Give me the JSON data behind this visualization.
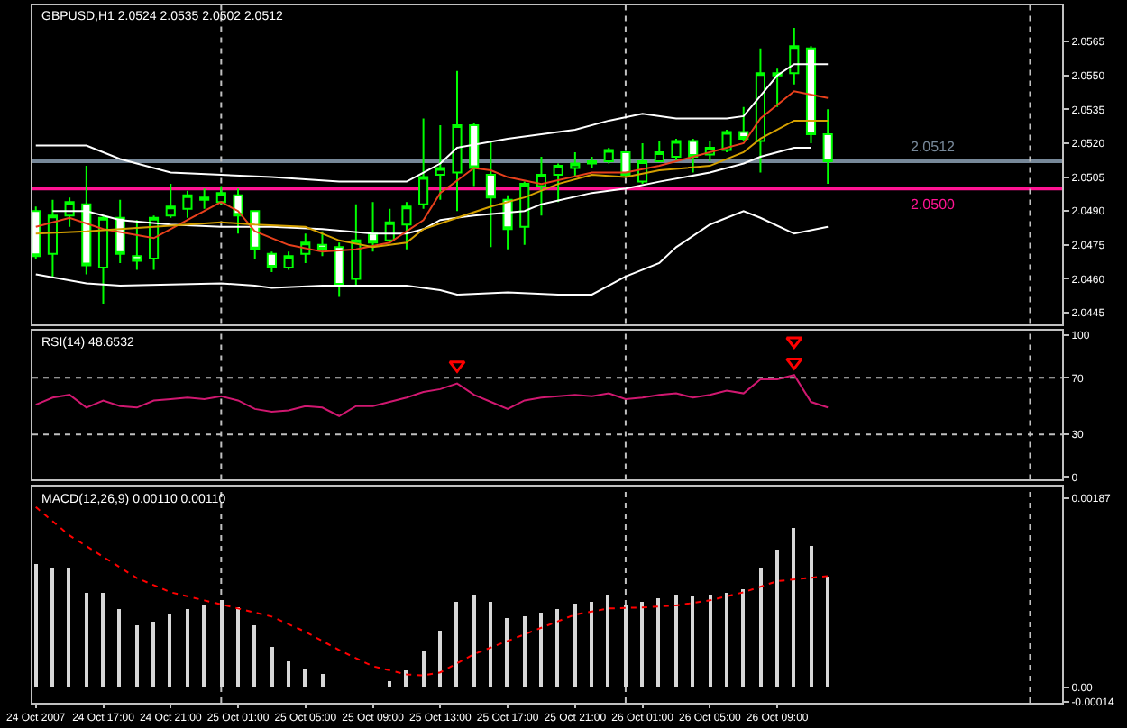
{
  "chart_data": [
    {
      "type": "candlestick",
      "title": "GBPUSD,H1 2.0524 2.0535 2.0502 2.0512",
      "x": [
        "2007-10-24T13:00",
        "2007-10-24T14:00",
        "2007-10-24T15:00",
        "2007-10-24T16:00",
        "2007-10-24T17:00",
        "2007-10-24T18:00",
        "2007-10-24T19:00",
        "2007-10-24T20:00",
        "2007-10-24T21:00",
        "2007-10-24T22:00",
        "2007-10-24T23:00",
        "2007-10-25T00:00",
        "2007-10-25T01:00",
        "2007-10-25T02:00",
        "2007-10-25T03:00",
        "2007-10-25T04:00",
        "2007-10-25T05:00",
        "2007-10-25T06:00",
        "2007-10-25T07:00",
        "2007-10-25T08:00",
        "2007-10-25T09:00",
        "2007-10-25T10:00",
        "2007-10-25T11:00",
        "2007-10-25T12:00",
        "2007-10-25T13:00",
        "2007-10-25T14:00",
        "2007-10-25T15:00",
        "2007-10-25T16:00",
        "2007-10-25T17:00",
        "2007-10-25T18:00",
        "2007-10-25T19:00",
        "2007-10-25T20:00",
        "2007-10-25T21:00",
        "2007-10-25T22:00",
        "2007-10-25T23:00",
        "2007-10-26T00:00",
        "2007-10-26T01:00",
        "2007-10-26T02:00",
        "2007-10-26T03:00",
        "2007-10-26T04:00",
        "2007-10-26T05:00",
        "2007-10-26T06:00",
        "2007-10-26T07:00",
        "2007-10-26T08:00",
        "2007-10-26T09:00",
        "2007-10-26T10:00",
        "2007-10-26T11:00",
        "2007-10-26T12:00"
      ],
      "series": [
        {
          "color": "#00ff00",
          "ohlc": [
            [
              2.049,
              2.0492,
              2.0469,
              2.047
            ],
            [
              2.0471,
              2.0495,
              2.0461,
              2.0488
            ],
            [
              2.0488,
              2.0496,
              2.0483,
              2.0494
            ],
            [
              2.0493,
              2.051,
              2.0462,
              2.0466
            ],
            [
              2.0465,
              2.0488,
              2.0449,
              2.0487
            ],
            [
              2.0487,
              2.0495,
              2.0467,
              2.0471
            ],
            [
              2.047,
              2.0486,
              2.0464,
              2.0468
            ],
            [
              2.0469,
              2.0488,
              2.0464,
              2.0487
            ],
            [
              2.0488,
              2.0502,
              2.0487,
              2.0492
            ],
            [
              2.0491,
              2.0499,
              2.0487,
              2.0497
            ],
            [
              2.0496,
              2.05,
              2.0491,
              2.0495
            ],
            [
              2.0494,
              2.0501,
              2.0493,
              2.0498
            ],
            [
              2.0497,
              2.05,
              2.048,
              2.0488
            ],
            [
              2.049,
              2.049,
              2.0469,
              2.0473
            ],
            [
              2.0471,
              2.0472,
              2.0463,
              2.0465
            ],
            [
              2.0465,
              2.0472,
              2.0464,
              2.047
            ],
            [
              2.0471,
              2.048,
              2.0467,
              2.0476
            ],
            [
              2.0475,
              2.0481,
              2.047,
              2.0473
            ],
            [
              2.0474,
              2.0476,
              2.0452,
              2.0457
            ],
            [
              2.046,
              2.0493,
              2.0457,
              2.0477
            ],
            [
              2.048,
              2.0494,
              2.0472,
              2.0476
            ],
            [
              2.0477,
              2.0491,
              2.0476,
              2.0485
            ],
            [
              2.0484,
              2.0494,
              2.0473,
              2.0492
            ],
            [
              2.0493,
              2.0531,
              2.0491,
              2.0505
            ],
            [
              2.0506,
              2.0528,
              2.0495,
              2.0509
            ],
            [
              2.0507,
              2.0552,
              2.049,
              2.0528
            ],
            [
              2.0528,
              2.0529,
              2.0501,
              2.0509
            ],
            [
              2.0506,
              2.0521,
              2.0474,
              2.0496
            ],
            [
              2.0495,
              2.0497,
              2.0473,
              2.0482
            ],
            [
              2.0483,
              2.0503,
              2.0475,
              2.0502
            ],
            [
              2.0501,
              2.0514,
              2.0488,
              2.0506
            ],
            [
              2.0506,
              2.0511,
              2.0494,
              2.051
            ],
            [
              2.0509,
              2.0516,
              2.0505,
              2.0511
            ],
            [
              2.0512,
              2.0514,
              2.0509,
              2.0511
            ],
            [
              2.0512,
              2.0518,
              2.0511,
              2.0517
            ],
            [
              2.0516,
              2.0516,
              2.0505,
              2.0506
            ],
            [
              2.0503,
              2.052,
              2.0502,
              2.0512
            ],
            [
              2.0512,
              2.0521,
              2.0512,
              2.0516
            ],
            [
              2.0514,
              2.0522,
              2.0512,
              2.0521
            ],
            [
              2.0521,
              2.0522,
              2.0507,
              2.0514
            ],
            [
              2.0515,
              2.0521,
              2.0512,
              2.0518
            ],
            [
              2.0517,
              2.0526,
              2.0516,
              2.0525
            ],
            [
              2.0525,
              2.0536,
              2.0521,
              2.0522
            ],
            [
              2.0521,
              2.0562,
              2.0507,
              2.0551
            ],
            [
              2.055,
              2.0553,
              2.0536,
              2.0551
            ],
            [
              2.0551,
              2.0571,
              2.0546,
              2.0563
            ],
            [
              2.0562,
              2.0563,
              2.052,
              2.0524
            ],
            [
              2.0524,
              2.0535,
              2.0502,
              2.0512
            ]
          ]
        },
        {
          "type": "line",
          "color": "#ffffff",
          "x": [
            "2007-10-24T13:00",
            "2007-10-24T16:00",
            "2007-10-24T18:00",
            "2007-10-24T21:00",
            "2007-10-25T00:00",
            "2007-10-25T03:00",
            "2007-10-25T07:00",
            "2007-10-25T11:00",
            "2007-10-25T12:00",
            "2007-10-25T13:00",
            "2007-10-25T14:00",
            "2007-10-25T17:00",
            "2007-10-25T19:00",
            "2007-10-25T21:00",
            "2007-10-25T23:00",
            "2007-10-26T01:00",
            "2007-10-26T03:00",
            "2007-10-26T06:00",
            "2007-10-26T07:00",
            "2007-10-26T08:00",
            "2007-10-26T09:00",
            "2007-10-26T10:00",
            "2007-10-26T12:00"
          ],
          "values": [
            2.0519,
            2.0519,
            2.0513,
            2.0507,
            2.0506,
            2.0505,
            2.0503,
            2.0503,
            2.0507,
            2.0511,
            2.0518,
            2.0522,
            2.0524,
            2.0526,
            2.053,
            2.0533,
            2.0531,
            2.0531,
            2.0532,
            2.0541,
            2.055,
            2.0555,
            2.0555
          ]
        },
        {
          "type": "line",
          "color": "#ffffff",
          "x": [
            "2007-10-24T14:00",
            "2007-10-24T16:00",
            "2007-10-24T18:00",
            "2007-10-24T21:00",
            "2007-10-25T00:00",
            "2007-10-25T03:00",
            "2007-10-25T06:00",
            "2007-10-25T09:00",
            "2007-10-25T11:00",
            "2007-10-25T12:00",
            "2007-10-25T13:00",
            "2007-10-25T15:00",
            "2007-10-25T18:00",
            "2007-10-25T19:00",
            "2007-10-25T22:00",
            "2007-10-26T00:00",
            "2007-10-26T02:00",
            "2007-10-26T05:00",
            "2007-10-26T07:00",
            "2007-10-26T08:00",
            "2007-10-26T10:00",
            "2007-10-26T11:00"
          ],
          "values": [
            2.049,
            2.049,
            2.0486,
            2.0484,
            2.0483,
            2.0483,
            2.0482,
            2.048,
            2.048,
            2.0482,
            2.0486,
            2.0488,
            2.049,
            2.0493,
            2.0498,
            2.05,
            2.0503,
            2.0507,
            2.0511,
            2.0514,
            2.0518,
            2.0518
          ]
        },
        {
          "type": "line",
          "color": "#ffffff",
          "x": [
            "2007-10-24T13:00",
            "2007-10-24T16:00",
            "2007-10-24T18:00",
            "2007-10-25T00:00",
            "2007-10-25T02:00",
            "2007-10-25T03:00",
            "2007-10-25T06:00",
            "2007-10-25T11:00",
            "2007-10-25T13:00",
            "2007-10-25T14:00",
            "2007-10-25T17:00",
            "2007-10-25T20:00",
            "2007-10-25T22:00",
            "2007-10-26T00:00",
            "2007-10-26T02:00",
            "2007-10-26T03:00",
            "2007-10-26T05:00",
            "2007-10-26T07:00",
            "2007-10-26T08:00",
            "2007-10-26T10:00",
            "2007-10-26T12:00"
          ],
          "values": [
            2.0462,
            2.0458,
            2.0457,
            2.0458,
            2.0457,
            2.0456,
            2.0457,
            2.0457,
            2.0455,
            2.0453,
            2.0454,
            2.0453,
            2.0453,
            2.0461,
            2.0467,
            2.0474,
            2.0484,
            2.049,
            2.0487,
            2.048,
            2.0483
          ]
        },
        {
          "type": "line",
          "color": "#e8401c",
          "x": [
            "2007-10-24T13:00",
            "2007-10-24T15:00",
            "2007-10-24T17:00",
            "2007-10-24T20:00",
            "2007-10-24T22:00",
            "2007-10-25T00:00",
            "2007-10-25T01:00",
            "2007-10-25T02:00",
            "2007-10-25T04:00",
            "2007-10-25T06:00",
            "2007-10-25T08:00",
            "2007-10-25T10:00",
            "2007-10-25T12:00",
            "2007-10-25T13:00",
            "2007-10-25T15:00",
            "2007-10-25T16:00",
            "2007-10-25T17:00",
            "2007-10-25T19:00",
            "2007-10-25T22:00",
            "2007-10-26T00:00",
            "2007-10-26T02:00",
            "2007-10-26T04:00",
            "2007-10-26T07:00",
            "2007-10-26T08:00",
            "2007-10-26T10:00",
            "2007-10-26T12:00"
          ],
          "values": [
            2.0483,
            2.0487,
            2.0482,
            2.0478,
            2.0486,
            2.0494,
            2.049,
            2.0481,
            2.0475,
            2.0472,
            2.0473,
            2.0476,
            2.0486,
            2.0498,
            2.0509,
            2.0508,
            2.0505,
            2.0502,
            2.0507,
            2.0507,
            2.051,
            2.0514,
            2.052,
            2.0531,
            2.0543,
            2.054
          ]
        },
        {
          "type": "line",
          "color": "#d4a000",
          "x": [
            "2007-10-24T13:00",
            "2007-10-24T16:00",
            "2007-10-24T20:00",
            "2007-10-24T22:00",
            "2007-10-25T00:00",
            "2007-10-25T02:00",
            "2007-10-25T05:00",
            "2007-10-25T07:00",
            "2007-10-25T09:00",
            "2007-10-25T11:00",
            "2007-10-25T12:00",
            "2007-10-25T14:00",
            "2007-10-25T16:00",
            "2007-10-25T18:00",
            "2007-10-25T20:00",
            "2007-10-25T22:00",
            "2007-10-26T00:00",
            "2007-10-26T02:00",
            "2007-10-26T05:00",
            "2007-10-26T07:00",
            "2007-10-26T08:00",
            "2007-10-26T10:00",
            "2007-10-26T12:00"
          ],
          "values": [
            2.048,
            2.0481,
            2.0483,
            2.0484,
            2.0485,
            2.0484,
            2.0483,
            2.0477,
            2.0474,
            2.0476,
            2.0482,
            2.0487,
            2.0492,
            2.0496,
            2.0502,
            2.0506,
            2.0505,
            2.0508,
            2.051,
            2.0516,
            2.0522,
            2.053,
            2.053
          ]
        }
      ],
      "xlim": [
        "2007-10-24T12:48",
        "2007-10-27T01:54"
      ],
      "ylim": [
        2.044,
        2.0581
      ],
      "yticks": [
        2.0445,
        {
          "value": 2.046,
          "label": "2.0460"
        },
        2.0475,
        {
          "value": 2.049,
          "label": "2.0490"
        },
        2.0505,
        {
          "value": 2.052,
          "label": "2.0520"
        },
        2.0535,
        {
          "value": 2.055,
          "label": "2.0550"
        },
        2.0565
      ],
      "tick_labels": "y",
      "ref_lines": [
        {
          "axis": "y",
          "value": 2.0512,
          "label": "2.0512",
          "color": "#778899"
        },
        {
          "axis": "y",
          "value": 2.05,
          "label": "2.0500",
          "color": "#ff1493"
        },
        {
          "axis": "x",
          "value": "2007-10-25T00:00",
          "color": "#c0c0c0",
          "line_style": "dotted"
        },
        {
          "axis": "x",
          "value": "2007-10-26T00:00",
          "color": "#c0c0c0",
          "line_style": "dotted"
        },
        {
          "axis": "x",
          "value": "2007-10-27T00:00",
          "color": "#c0c0c0",
          "line_style": "dotted"
        }
      ]
    },
    {
      "type": "line",
      "title": "RSI(14) 48.6532",
      "x": [
        "2007-10-24T13:00",
        "2007-10-24T14:00",
        "2007-10-24T15:00",
        "2007-10-24T16:00",
        "2007-10-24T17:00",
        "2007-10-24T18:00",
        "2007-10-24T19:00",
        "2007-10-24T20:00",
        "2007-10-24T21:00",
        "2007-10-24T22:00",
        "2007-10-24T23:00",
        "2007-10-25T00:00",
        "2007-10-25T01:00",
        "2007-10-25T02:00",
        "2007-10-25T03:00",
        "2007-10-25T04:00",
        "2007-10-25T05:00",
        "2007-10-25T06:00",
        "2007-10-25T07:00",
        "2007-10-25T08:00",
        "2007-10-25T09:00",
        "2007-10-25T10:00",
        "2007-10-25T11:00",
        "2007-10-25T12:00",
        "2007-10-25T13:00",
        "2007-10-25T14:00",
        "2007-10-25T15:00",
        "2007-10-25T16:00",
        "2007-10-25T17:00",
        "2007-10-25T18:00",
        "2007-10-25T19:00",
        "2007-10-25T20:00",
        "2007-10-25T21:00",
        "2007-10-25T22:00",
        "2007-10-25T23:00",
        "2007-10-26T00:00",
        "2007-10-26T01:00",
        "2007-10-26T02:00",
        "2007-10-26T03:00",
        "2007-10-26T04:00",
        "2007-10-26T05:00",
        "2007-10-26T06:00",
        "2007-10-26T07:00",
        "2007-10-26T08:00",
        "2007-10-26T09:00",
        "2007-10-26T10:00",
        "2007-10-26T11:00",
        "2007-10-26T12:00"
      ],
      "series": [
        {
          "color": "#d01870",
          "values": [
            51,
            56,
            58,
            49,
            54,
            50,
            49,
            54,
            55,
            56,
            55,
            57,
            54,
            48,
            46,
            47,
            50,
            49,
            43,
            50,
            50,
            53,
            56,
            60,
            62,
            66,
            58,
            53,
            48,
            54,
            56,
            57,
            58,
            57,
            59,
            55,
            56,
            58,
            59,
            56,
            58,
            61,
            59,
            69,
            69,
            72,
            53,
            49
          ]
        },
        {
          "type": "scatter",
          "marker": "triangle",
          "color": "#ff0000",
          "x": [
            "2007-10-25T14:00",
            "2007-10-26T10:00",
            "2007-10-26T10:00"
          ],
          "values": [
            79,
            96,
            81
          ]
        }
      ],
      "xlim": [
        "2007-10-24T12:48",
        "2007-10-27T01:54"
      ],
      "ylim": [
        -2,
        103
      ],
      "yticks": [
        0,
        30,
        70,
        100
      ],
      "tick_labels": "y",
      "ref_lines": [
        {
          "axis": "y",
          "value": 70,
          "color": "#c0c0c0",
          "line_style": "dotted"
        },
        {
          "axis": "y",
          "value": 30,
          "color": "#c0c0c0",
          "line_style": "dotted"
        },
        {
          "axis": "x",
          "value": "2007-10-25T00:00",
          "color": "#c0c0c0",
          "line_style": "dotted"
        },
        {
          "axis": "x",
          "value": "2007-10-26T00:00",
          "color": "#c0c0c0",
          "line_style": "dotted"
        },
        {
          "axis": "x",
          "value": "2007-10-27T00:00",
          "color": "#c0c0c0",
          "line_style": "dotted"
        }
      ]
    },
    {
      "type": "bar",
      "title": "MACD(12,26,9) 0.00110 0.00110",
      "x": [
        "2007-10-24T13:00",
        "2007-10-24T14:00",
        "2007-10-24T15:00",
        "2007-10-24T16:00",
        "2007-10-24T17:00",
        "2007-10-24T18:00",
        "2007-10-24T19:00",
        "2007-10-24T20:00",
        "2007-10-24T21:00",
        "2007-10-24T22:00",
        "2007-10-24T23:00",
        "2007-10-25T00:00",
        "2007-10-25T01:00",
        "2007-10-25T02:00",
        "2007-10-25T03:00",
        "2007-10-25T04:00",
        "2007-10-25T05:00",
        "2007-10-25T06:00",
        "2007-10-25T07:00",
        "2007-10-25T08:00",
        "2007-10-25T09:00",
        "2007-10-25T10:00",
        "2007-10-25T11:00",
        "2007-10-25T12:00",
        "2007-10-25T13:00",
        "2007-10-25T14:00",
        "2007-10-25T15:00",
        "2007-10-25T16:00",
        "2007-10-25T17:00",
        "2007-10-25T18:00",
        "2007-10-25T19:00",
        "2007-10-25T20:00",
        "2007-10-25T21:00",
        "2007-10-25T22:00",
        "2007-10-25T23:00",
        "2007-10-26T00:00",
        "2007-10-26T01:00",
        "2007-10-26T02:00",
        "2007-10-26T03:00",
        "2007-10-26T04:00",
        "2007-10-26T05:00",
        "2007-10-26T06:00",
        "2007-10-26T07:00",
        "2007-10-26T08:00",
        "2007-10-26T09:00",
        "2007-10-26T10:00",
        "2007-10-26T11:00",
        "2007-10-26T12:00"
      ],
      "series": [
        {
          "color": "#d8d8d8",
          "values": [
            0.00121,
            0.00118,
            0.00118,
            0.00094,
            0.00094,
            0.00077,
            0.00061,
            0.00065,
            0.00071,
            0.00077,
            0.00081,
            0.00086,
            0.00079,
            0.00061,
            0.00039,
            0.00026,
            0.00019,
            0.00013,
            0,
            0,
            0,
            6e-05,
            0.00016,
            0.00036,
            0.00055,
            0.00085,
            0.00092,
            0.00085,
            0.00068,
            0.0007,
            0.00073,
            0.00078,
            0.00082,
            0.00085,
            0.00092,
            0.00081,
            0.00085,
            0.00087,
            0.00092,
            0.00089,
            0.00091,
            0.00094,
            0.00097,
            0.00118,
            0.00136,
            0.00158,
            0.0014,
            0.0011
          ]
        },
        {
          "type": "line",
          "color": "#ff0000",
          "line_style": "dotted",
          "x": [
            "2007-10-24T13:00",
            "2007-10-24T15:00",
            "2007-10-24T17:00",
            "2007-10-24T19:00",
            "2007-10-24T21:00",
            "2007-10-24T23:00",
            "2007-10-25T01:00",
            "2007-10-25T03:00",
            "2007-10-25T05:00",
            "2007-10-25T07:00",
            "2007-10-25T09:00",
            "2007-10-25T11:00",
            "2007-10-25T12:00",
            "2007-10-25T13:00",
            "2007-10-25T15:00",
            "2007-10-25T17:00",
            "2007-10-25T19:00",
            "2007-10-25T21:00",
            "2007-10-25T23:00",
            "2007-10-26T01:00",
            "2007-10-26T03:00",
            "2007-10-26T05:00",
            "2007-10-26T07:00",
            "2007-10-26T09:00",
            "2007-10-26T12:00"
          ],
          "values": [
            0.00178,
            0.0015,
            0.00129,
            0.00108,
            0.00094,
            0.00086,
            0.00078,
            0.0007,
            0.00055,
            0.00037,
            0.00021,
            0.00013,
            0.00012,
            0.00015,
            0.00033,
            0.00046,
            0.00059,
            0.00072,
            0.00078,
            0.00079,
            0.00081,
            0.00086,
            0.00094,
            0.00105,
            0.0011
          ]
        }
      ],
      "xlim": [
        "2007-10-24T12:48",
        "2007-10-27T01:54"
      ],
      "ylim": [
        -0.00015,
        0.00198
      ],
      "yticks": [
        0.00187,
        {
          "value": 0,
          "label": "0.00"
        },
        -0.00014
      ],
      "xticks": [
        {
          "value": "2007-10-24T13:00",
          "label": "24 Oct 2007"
        },
        {
          "value": "2007-10-24T17:00",
          "label": "24 Oct 17:00"
        },
        {
          "value": "2007-10-24T21:00",
          "label": "24 Oct 21:00"
        },
        {
          "value": "2007-10-25T01:00",
          "label": "25 Oct 01:00"
        },
        {
          "value": "2007-10-25T05:00",
          "label": "25 Oct 05:00"
        },
        {
          "value": "2007-10-25T09:00",
          "label": "25 Oct 09:00"
        },
        {
          "value": "2007-10-25T13:00",
          "label": "25 Oct 13:00"
        },
        {
          "value": "2007-10-25T17:00",
          "label": "25 Oct 17:00"
        },
        {
          "value": "2007-10-25T21:00",
          "label": "25 Oct 21:00"
        },
        {
          "value": "2007-10-26T01:00",
          "label": "26 Oct 01:00"
        },
        {
          "value": "2007-10-26T05:00",
          "label": "26 Oct 05:00"
        },
        {
          "value": "2007-10-26T09:00",
          "label": "26 Oct 09:00"
        }
      ],
      "ref_lines": [
        {
          "axis": "x",
          "value": "2007-10-25T00:00",
          "color": "#c0c0c0",
          "line_style": "dotted"
        },
        {
          "axis": "x",
          "value": "2007-10-26T00:00",
          "color": "#c0c0c0",
          "line_style": "dotted"
        },
        {
          "axis": "x",
          "value": "2007-10-27T00:00",
          "color": "#c0c0c0",
          "line_style": "dotted"
        }
      ]
    }
  ]
}
